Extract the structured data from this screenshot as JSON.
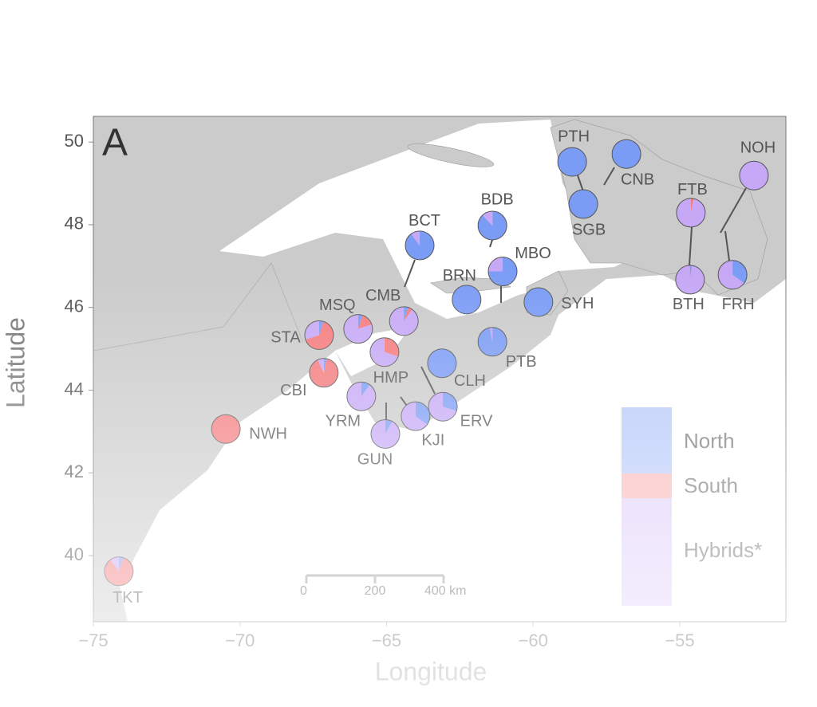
{
  "chart_data": {
    "type": "pie-map",
    "panel": "A",
    "xlabel": "Longitude",
    "ylabel": "Latitude",
    "xlim": [
      -75,
      -51.38
    ],
    "ylim": [
      38.4,
      50.62
    ],
    "xticks": [
      {
        "value": -75,
        "label": "−75"
      },
      {
        "value": -70,
        "label": "−70"
      },
      {
        "value": -65,
        "label": "−65"
      },
      {
        "value": -60,
        "label": "−60"
      },
      {
        "value": -55,
        "label": "−55"
      }
    ],
    "yticks": [
      40,
      42,
      44,
      46,
      48,
      50
    ],
    "legend": [
      {
        "name": "North",
        "color": "#7b9cf5"
      },
      {
        "name": "South",
        "color": "#f47b7d"
      },
      {
        "name": "Hybrids*",
        "color": "#c6a8f6"
      }
    ],
    "scale_bar": [
      "0",
      "200",
      "400 km"
    ],
    "sites": [
      {
        "name": "PTH",
        "lon": -58.67,
        "lat": 49.52,
        "values": [
          100,
          0,
          0
        ]
      },
      {
        "name": "CNB",
        "lon": -56.82,
        "lat": 49.71,
        "values": [
          100,
          0,
          0
        ]
      },
      {
        "name": "SGB",
        "lon": -58.29,
        "lat": 48.5,
        "values": [
          100,
          0,
          0
        ]
      },
      {
        "name": "NOH",
        "lon": -52.47,
        "lat": 49.19,
        "values": [
          0,
          0,
          100
        ]
      },
      {
        "name": "FTB",
        "lon": -54.62,
        "lat": 48.29,
        "values": [
          0,
          3,
          97
        ]
      },
      {
        "name": "BTH",
        "lon": -54.65,
        "lat": 46.67,
        "values": [
          2,
          0,
          98
        ]
      },
      {
        "name": "FRH",
        "lon": -53.2,
        "lat": 46.79,
        "values": [
          35,
          0,
          65
        ]
      },
      {
        "name": "BDB",
        "lon": -61.39,
        "lat": 47.98,
        "values": [
          88,
          0,
          12
        ]
      },
      {
        "name": "BCT",
        "lon": -63.87,
        "lat": 47.5,
        "values": [
          90,
          0,
          10
        ]
      },
      {
        "name": "MBO",
        "lon": -61.04,
        "lat": 46.87,
        "values": [
          75,
          0,
          25
        ]
      },
      {
        "name": "BRN",
        "lon": -62.27,
        "lat": 46.19,
        "values": [
          100,
          0,
          0
        ]
      },
      {
        "name": "SYH",
        "lon": -59.82,
        "lat": 46.13,
        "values": [
          100,
          0,
          0
        ]
      },
      {
        "name": "CMB",
        "lon": -64.41,
        "lat": 45.67,
        "values": [
          5,
          5,
          90
        ]
      },
      {
        "name": "MSQ",
        "lon": -65.97,
        "lat": 45.48,
        "values": [
          5,
          15,
          80
        ]
      },
      {
        "name": "STA",
        "lon": -67.3,
        "lat": 45.33,
        "values": [
          5,
          65,
          30
        ]
      },
      {
        "name": "PTB",
        "lon": -61.39,
        "lat": 45.17,
        "values": [
          97,
          0,
          3
        ]
      },
      {
        "name": "HMP",
        "lon": -65.07,
        "lat": 44.92,
        "values": [
          0,
          30,
          70
        ]
      },
      {
        "name": "CLH",
        "lon": -63.11,
        "lat": 44.65,
        "values": [
          100,
          0,
          0
        ]
      },
      {
        "name": "CBI",
        "lon": -67.14,
        "lat": 44.42,
        "values": [
          3,
          90,
          7
        ]
      },
      {
        "name": "YRM",
        "lon": -65.86,
        "lat": 43.85,
        "values": [
          10,
          0,
          90
        ]
      },
      {
        "name": "ERV",
        "lon": -63.08,
        "lat": 43.6,
        "values": [
          30,
          0,
          70
        ]
      },
      {
        "name": "KJI",
        "lon": -64.01,
        "lat": 43.37,
        "values": [
          35,
          0,
          65
        ]
      },
      {
        "name": "GUN",
        "lon": -65.04,
        "lat": 42.94,
        "values": [
          8,
          0,
          92
        ]
      },
      {
        "name": "NWH",
        "lon": -70.48,
        "lat": 43.06,
        "values": [
          0,
          100,
          0
        ]
      },
      {
        "name": "TKT",
        "lon": -74.13,
        "lat": 39.62,
        "values": [
          5,
          85,
          10
        ]
      }
    ]
  }
}
